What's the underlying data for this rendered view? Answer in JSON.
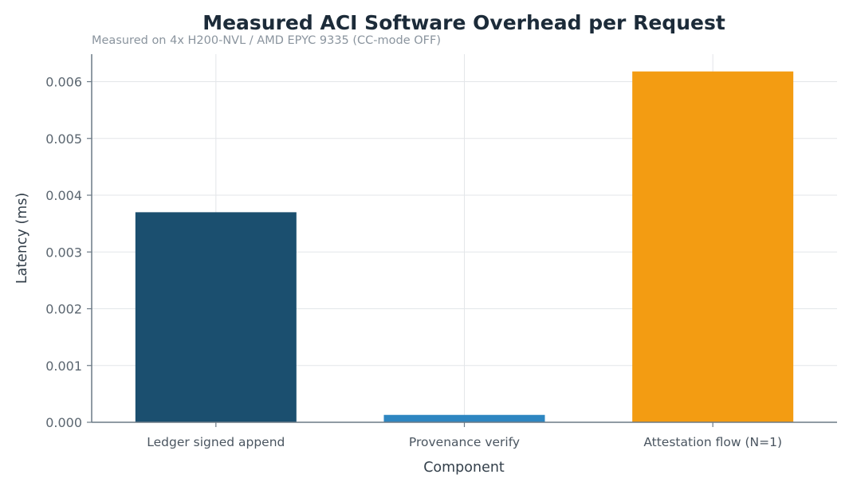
{
  "chart_data": {
    "type": "bar",
    "title": "Measured ACI Software Overhead per Request",
    "subtitle": "Measured on 4x H200-NVL / AMD EPYC 9335 (CC-mode OFF)",
    "xlabel": "Component",
    "ylabel": "Latency (ms)",
    "categories": [
      "Ledger signed append",
      "Provenance verify",
      "Attestation flow (N=1)"
    ],
    "values": [
      0.0037,
      0.00013,
      0.00618
    ],
    "colors": [
      "#1b4f6f",
      "#2e86c1",
      "#f39c12"
    ],
    "yticks": [
      "0.000",
      "0.001",
      "0.002",
      "0.003",
      "0.004",
      "0.005",
      "0.006"
    ],
    "ylim": [
      0,
      0.0064
    ],
    "grid": true,
    "legend": "none"
  }
}
